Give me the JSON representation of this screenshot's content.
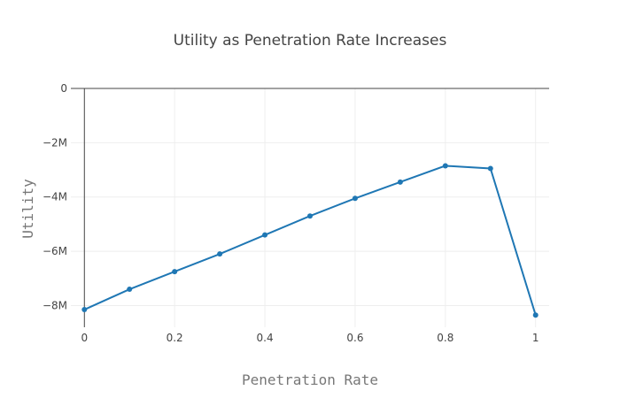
{
  "chart_data": {
    "type": "line",
    "title": "Utility as Penetration Rate Increases",
    "xlabel": "Penetration Rate",
    "ylabel": "Utility",
    "xlim": [
      -0.03,
      1.03
    ],
    "ylim": [
      -8.8,
      0
    ],
    "x_ticks": [
      0,
      0.2,
      0.4,
      0.6,
      0.8,
      1
    ],
    "x_tick_labels": [
      "0",
      "0.2",
      "0.4",
      "0.6",
      "0.8",
      "1"
    ],
    "y_ticks": [
      0,
      -2,
      -4,
      -6,
      -8
    ],
    "y_tick_labels": [
      "0",
      "−2M",
      "−4M",
      "−6M",
      "−8M"
    ],
    "y_unit": "M",
    "grid": true,
    "series": [
      {
        "color": "#1f77b4",
        "x": [
          0,
          0.1,
          0.2,
          0.3,
          0.4,
          0.5,
          0.6,
          0.7,
          0.8,
          0.9,
          1.0
        ],
        "y": [
          -8.15,
          -7.4,
          -6.75,
          -6.1,
          -5.4,
          -4.7,
          -4.05,
          -3.45,
          -2.85,
          -2.95,
          -8.35
        ]
      }
    ]
  }
}
